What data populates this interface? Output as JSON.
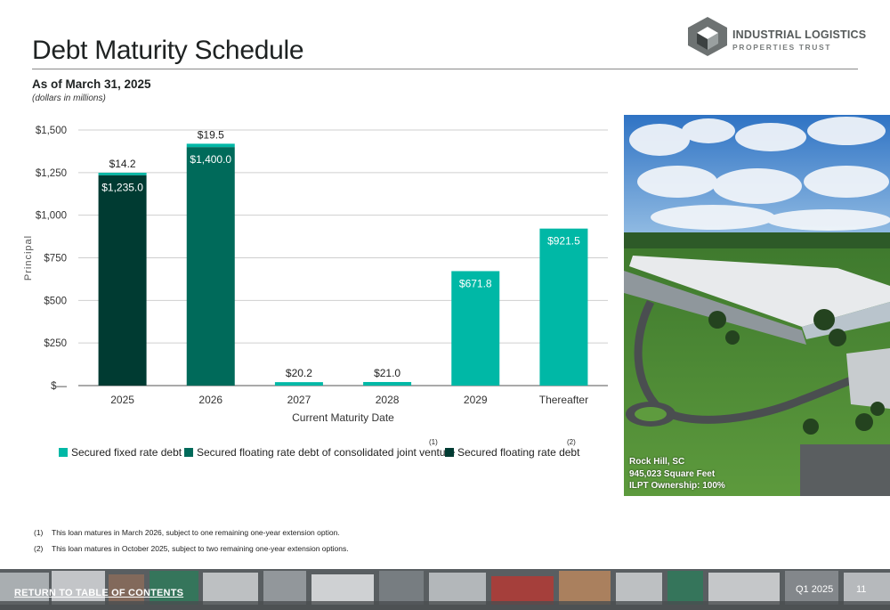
{
  "page": {
    "title": "Debt Maturity Schedule",
    "subtitle": "As of March 31, 2025",
    "units_note": "(dollars in millions)"
  },
  "logo": {
    "line1": "INDUSTRIAL LOGISTICS",
    "line2": "PROPERTIES TRUST"
  },
  "chart_data": {
    "type": "bar",
    "stacked": true,
    "categories": [
      "2025",
      "2026",
      "2027",
      "2028",
      "2029",
      "Thereafter"
    ],
    "series": [
      {
        "name": "Secured fixed rate debt",
        "color": "#00b8a6",
        "values": [
          14.2,
          19.5,
          20.2,
          21.0,
          671.8,
          921.5
        ]
      },
      {
        "name": "Secured floating rate debt of consolidated joint venture",
        "color": "#006a5a",
        "values": [
          0,
          1400.0,
          0,
          0,
          0,
          0
        ]
      },
      {
        "name": "Secured floating rate debt",
        "color": "#003b32",
        "values": [
          1235.0,
          0,
          0,
          0,
          0,
          0
        ]
      }
    ],
    "data_labels": {
      "2025": {
        "top": "$14.2",
        "inside": "$1,235.0"
      },
      "2026": {
        "top": "$19.5",
        "inside": "$1,400.0"
      },
      "2027": {
        "top": "$20.2"
      },
      "2028": {
        "top": "$21.0"
      },
      "2029": {
        "inside": "$671.8"
      },
      "Thereafter": {
        "inside": "$921.5"
      }
    },
    "xlabel": "Current Maturity Date",
    "ylabel": "Principal",
    "ylim": [
      0,
      1500
    ],
    "yticks": [
      0,
      250,
      500,
      750,
      1000,
      1250,
      1500
    ],
    "ytick_labels": [
      "$—",
      "$250",
      "$500",
      "$750",
      "$1,000",
      "$1,250",
      "$1,500"
    ],
    "grid": true,
    "legend": "bottom"
  },
  "legend": {
    "items": [
      {
        "label": "Secured fixed rate debt",
        "color": "#00b8a6",
        "ref": ""
      },
      {
        "label": "Secured floating rate debt of consolidated joint venture",
        "color": "#006a5a",
        "ref": "(1)"
      },
      {
        "label": "Secured floating rate debt",
        "color": "#003b32",
        "ref": "(2)"
      }
    ]
  },
  "photo": {
    "caption_line1": "Rock Hill, SC",
    "caption_line2": "945,023 Square Feet",
    "caption_line3": "ILPT Ownership: 100%"
  },
  "footnotes": [
    {
      "num": "(1)",
      "text": "This loan matures in March 2026, subject to one remaining one-year extension option."
    },
    {
      "num": "(2)",
      "text": "This loan matures in October 2025, subject to two remaining one-year extension options."
    }
  ],
  "footer": {
    "link": "RETURN TO TABLE OF CONTENTS",
    "quarter": "Q1 2025",
    "page_number": "11"
  }
}
